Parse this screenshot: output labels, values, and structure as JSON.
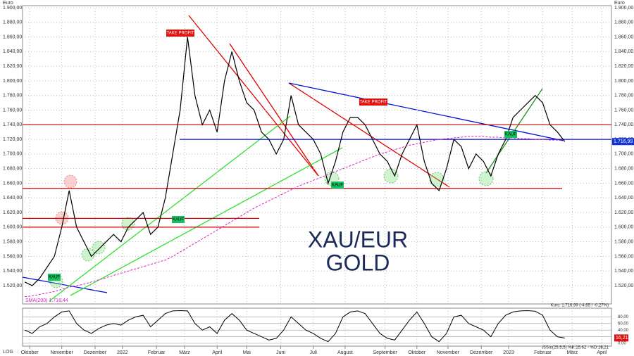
{
  "chart_data": {
    "type": "line",
    "title": "XAU/EUR",
    "subtitle": "GOLD",
    "y_unit": "Euro",
    "log_label": "LOG",
    "xlim": [
      -0.3,
      79.3
    ],
    "xticks": [
      {
        "value": 0.67,
        "label": "Oktober"
      },
      {
        "value": 5.0,
        "label": "November"
      },
      {
        "value": 9.5,
        "label": "Dezember"
      },
      {
        "value": 13.2,
        "label": "2022"
      },
      {
        "value": 17.8,
        "label": "Februar"
      },
      {
        "value": 21.6,
        "label": "März"
      },
      {
        "value": 26,
        "label": "April"
      },
      {
        "value": 30,
        "label": "Mai"
      },
      {
        "value": 34.6,
        "label": "Juni"
      },
      {
        "value": 39,
        "label": "Juli"
      },
      {
        "value": 43.3,
        "label": "August"
      },
      {
        "value": 48.7,
        "label": "September"
      },
      {
        "value": 53,
        "label": "Oktober"
      },
      {
        "value": 57.2,
        "label": "November"
      },
      {
        "value": 61.7,
        "label": "Dezember"
      },
      {
        "value": 65.4,
        "label": "2023"
      },
      {
        "value": 70,
        "label": "Februar"
      },
      {
        "value": 74,
        "label": "März"
      },
      {
        "value": 78,
        "label": "April"
      }
    ],
    "ylim": [
      1520,
      1900
    ],
    "yticks": [
      {
        "value": 1520,
        "label": "1.520,00"
      },
      {
        "value": 1540,
        "label": "1.540,00"
      },
      {
        "value": 1560,
        "label": "1.560,00"
      },
      {
        "value": 1580,
        "label": "1.580,00"
      },
      {
        "value": 1600,
        "label": "1.600,00"
      },
      {
        "value": 1620,
        "label": "1.620,00"
      },
      {
        "value": 1640,
        "label": "1.640,00"
      },
      {
        "value": 1660,
        "label": "1.660,00"
      },
      {
        "value": 1680,
        "label": "1.680,00"
      },
      {
        "value": 1700,
        "label": "1.700,00"
      },
      {
        "value": 1720,
        "label": "1.720,00"
      },
      {
        "value": 1740,
        "label": "1.740,00"
      },
      {
        "value": 1760,
        "label": "1.760,00"
      },
      {
        "value": 1780,
        "label": "1.780,00"
      },
      {
        "value": 1800,
        "label": "1.800,00"
      },
      {
        "value": 1820,
        "label": "1.820,00"
      },
      {
        "value": 1840,
        "label": "1.840,00"
      },
      {
        "value": 1860,
        "label": "1.860,00"
      },
      {
        "value": 1880,
        "label": "1.880,00"
      },
      {
        "value": 1900,
        "label": "1.900,00"
      }
    ],
    "grid": true,
    "series": [
      {
        "name": "XAU/EUR",
        "color": "#000000",
        "values": [
          1525,
          1520,
          1530,
          1545,
          1560,
          1600,
          1650,
          1600,
          1580,
          1560,
          1570,
          1580,
          1590,
          1580,
          1600,
          1610,
          1620,
          1590,
          1600,
          1640,
          1700,
          1760,
          1860,
          1780,
          1740,
          1760,
          1730,
          1800,
          1840,
          1800,
          1770,
          1760,
          1730,
          1720,
          1700,
          1720,
          1780,
          1740,
          1730,
          1720,
          1700,
          1660,
          1690,
          1730,
          1750,
          1750,
          1740,
          1720,
          1700,
          1690,
          1670,
          1700,
          1720,
          1740,
          1690,
          1660,
          1650,
          1680,
          1720,
          1710,
          1680,
          1700,
          1690,
          1670,
          1700,
          1720,
          1750,
          1760,
          1770,
          1780,
          1770,
          1740,
          1730,
          1717
        ]
      },
      {
        "name": "SMA(200) 1.718,44",
        "color": "#e020c0",
        "values": [
          1505,
          1506,
          1508,
          1510,
          1512,
          1515,
          1518,
          1520,
          1522,
          1525,
          1528,
          1531,
          1534,
          1537,
          1540,
          1543,
          1546,
          1549,
          1552,
          1555,
          1560,
          1566,
          1572,
          1578,
          1584,
          1590,
          1596,
          1602,
          1608,
          1614,
          1620,
          1626,
          1631,
          1636,
          1641,
          1646,
          1651,
          1656,
          1660,
          1664,
          1668,
          1672,
          1676,
          1680,
          1684,
          1688,
          1692,
          1696,
          1700,
          1703,
          1706,
          1709,
          1712,
          1714,
          1716,
          1718,
          1720,
          1721,
          1722,
          1723,
          1724,
          1724,
          1724,
          1723,
          1723,
          1722,
          1722,
          1721,
          1721,
          1720,
          1720,
          1719,
          1719,
          1718
        ]
      }
    ],
    "levels": [
      {
        "value": 1740,
        "color": "#d00000"
      },
      {
        "value": 1720,
        "color": "#0010d0"
      },
      {
        "value": 1653,
        "color": "#d00000"
      },
      {
        "value": 1612,
        "color": "#d00000"
      },
      {
        "value": 1600,
        "color": "#d00000"
      }
    ],
    "last_price": {
      "value": 1716.99,
      "label": "1.716,99"
    },
    "annotations": [
      "TAKE PROFIT",
      "TAKE PROFIT",
      "KAUF",
      "KAUF",
      "KAUF",
      "KAUF"
    ],
    "quote_text": "Kurs: 1.716,99 (-4,65 / -0,27%)",
    "oscillator": {
      "name": "SSto(25,5,5) %K:15,62 - %D:16,21",
      "color": "#000000",
      "ylim": [
        0,
        100
      ],
      "yticks": [
        {
          "value": 0,
          "label": "0,00"
        },
        {
          "value": 20,
          "label": "20,00"
        },
        {
          "value": 40,
          "label": "40,00"
        },
        {
          "value": 60,
          "label": "60,00"
        },
        {
          "value": 80,
          "label": "80,00"
        }
      ],
      "last": {
        "value": 16.21,
        "label": "16,21"
      },
      "values": [
        40,
        30,
        50,
        60,
        80,
        95,
        98,
        60,
        40,
        30,
        45,
        55,
        60,
        55,
        70,
        80,
        85,
        50,
        70,
        90,
        98,
        99,
        98,
        60,
        40,
        50,
        30,
        70,
        90,
        70,
        40,
        30,
        20,
        10,
        15,
        40,
        80,
        60,
        40,
        30,
        15,
        5,
        30,
        80,
        95,
        98,
        90,
        60,
        30,
        15,
        10,
        40,
        70,
        95,
        60,
        20,
        5,
        30,
        80,
        85,
        60,
        50,
        40,
        20,
        60,
        85,
        95,
        98,
        99,
        97,
        85,
        40,
        20,
        16
      ]
    }
  }
}
